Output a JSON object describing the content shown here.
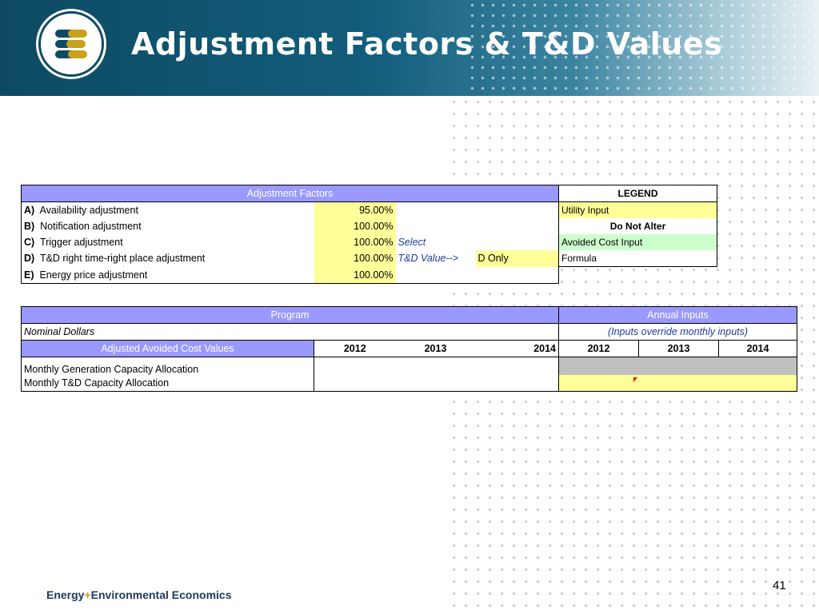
{
  "slide": {
    "title": "Adjustment Factors & T&D Values",
    "page_number": "41",
    "footer_company_a": "Energy",
    "footer_plus": "+",
    "footer_company_b": "Environmental Economics"
  },
  "adjustment_table": {
    "header": "Adjustment Factors",
    "rows": [
      {
        "letter": "A)",
        "label": "Availability adjustment",
        "value": "95.00%",
        "note": "",
        "extra": ""
      },
      {
        "letter": "B)",
        "label": "Notification adjustment",
        "value": "100.00%",
        "note": "",
        "extra": ""
      },
      {
        "letter": "C)",
        "label": "Trigger adjustment",
        "value": "100.00%",
        "note": "Select",
        "extra": ""
      },
      {
        "letter": "D)",
        "label": "T&D right time-right place adjustment",
        "value": "100.00%",
        "note": "T&D Value-->",
        "extra": "D Only"
      },
      {
        "letter": "E)",
        "label": "Energy price adjustment",
        "value": "100.00%",
        "note": "",
        "extra": ""
      }
    ]
  },
  "legend": {
    "title": "LEGEND",
    "items": [
      "Utility Input",
      "Do Not Alter",
      "Avoided Cost Input",
      "Formula"
    ],
    "colors": {
      "utility_input": "#ffff99",
      "avoided_cost_input": "#ccffcc",
      "header": "#9999ff"
    }
  },
  "program_table": {
    "program_header": "Program",
    "annual_header": "Annual Inputs",
    "nominal": "Nominal Dollars",
    "override_note": "(Inputs override monthly inputs)",
    "values_header": "Adjusted Avoided Cost Values",
    "years": [
      "2012",
      "2013",
      "2014"
    ],
    "annual_years": [
      "2012",
      "2013",
      "2014"
    ],
    "rows": [
      "Monthly Generation Capacity Allocation",
      "Monthly T&D Capacity Allocation"
    ]
  }
}
